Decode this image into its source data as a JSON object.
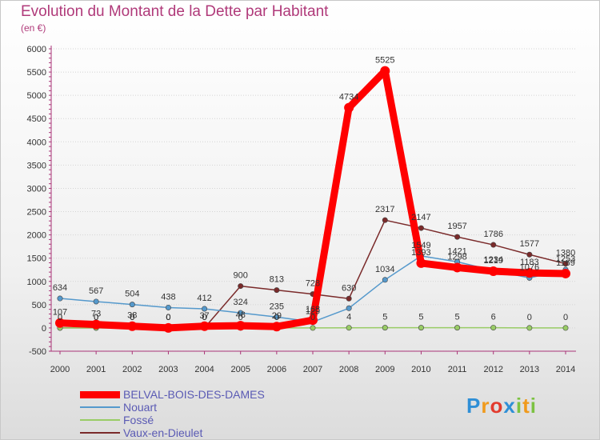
{
  "chart_data": {
    "type": "line",
    "title": "Evolution du Montant de la Dette par Habitant",
    "subtitle": "(en €)",
    "x": [
      "2000",
      "2001",
      "2002",
      "2003",
      "2004",
      "2005",
      "2006",
      "2007",
      "2008",
      "2009",
      "2010",
      "2011",
      "2012",
      "2013",
      "2014"
    ],
    "ylim": [
      -500,
      6000
    ],
    "yticks": [
      -500,
      0,
      500,
      1000,
      1500,
      2000,
      2500,
      3000,
      3500,
      4000,
      4500,
      5000,
      5500,
      6000
    ],
    "grid": "horizontal",
    "series": [
      {
        "name": "BELVAL-BOIS-DES-DAMES",
        "color": "#ff0000",
        "values": [
          107,
          73,
          38,
          0,
          37,
          48,
          29,
          168,
          4734,
          5525,
          1393,
          1298,
          1219,
          1183,
          1169
        ],
        "labels": [
          "107",
          "73",
          "38",
          "0",
          "37",
          "48",
          "29",
          "168",
          "4734",
          "5525",
          "1393",
          "1298",
          "1219",
          "1183",
          "1169"
        ]
      },
      {
        "name": "Nouart",
        "color": "#5599cc",
        "values": [
          634,
          567,
          504,
          438,
          412,
          324,
          235,
          129,
          424,
          1034,
          1549,
          1421,
          1234,
          1076,
          1253
        ],
        "labels": [
          "634",
          "567",
          "504",
          "438",
          "412",
          "324",
          "235",
          "129",
          "",
          "1034",
          "1549",
          "1421",
          "1234",
          "1076",
          "1253"
        ]
      },
      {
        "name": "Fossé",
        "color": "#99cc66",
        "values": [
          0,
          0,
          0,
          0,
          0,
          0,
          0,
          0,
          4,
          5,
          5,
          5,
          6,
          0,
          0
        ],
        "labels": [
          "0",
          "0",
          "0",
          "0",
          "0",
          "0",
          "0",
          "0",
          "4",
          "5",
          "5",
          "5",
          "6",
          "0",
          "0"
        ]
      },
      {
        "name": "Vaux-en-Dieulet",
        "color": "#7a2a2a",
        "values": [
          0,
          0,
          0,
          0,
          0,
          900,
          813,
          728,
          630,
          2317,
          2147,
          1957,
          1786,
          1577,
          1380
        ],
        "labels": [
          "0",
          "0",
          "0",
          "0",
          "0",
          "900",
          "813",
          "728",
          "630",
          "2317",
          "2147",
          "1957",
          "1786",
          "1577",
          "1380"
        ]
      }
    ]
  },
  "legend": [
    {
      "name": "BELVAL-BOIS-DES-DAMES",
      "color": "#ff0000"
    },
    {
      "name": "Nouart",
      "color": "#5599cc"
    },
    {
      "name": "Fossé",
      "color": "#99cc66"
    },
    {
      "name": "Vaux-en-Dieulet",
      "color": "#7a2a2a"
    }
  ],
  "logo": {
    "letters": [
      "P",
      "r",
      "o",
      "x",
      "i",
      "t",
      "i"
    ],
    "colors": [
      "#2f8fd6",
      "#f09a1c",
      "#e23b2e",
      "#2f8fd6",
      "#7cc242",
      "#f09a1c",
      "#7cc242"
    ]
  }
}
